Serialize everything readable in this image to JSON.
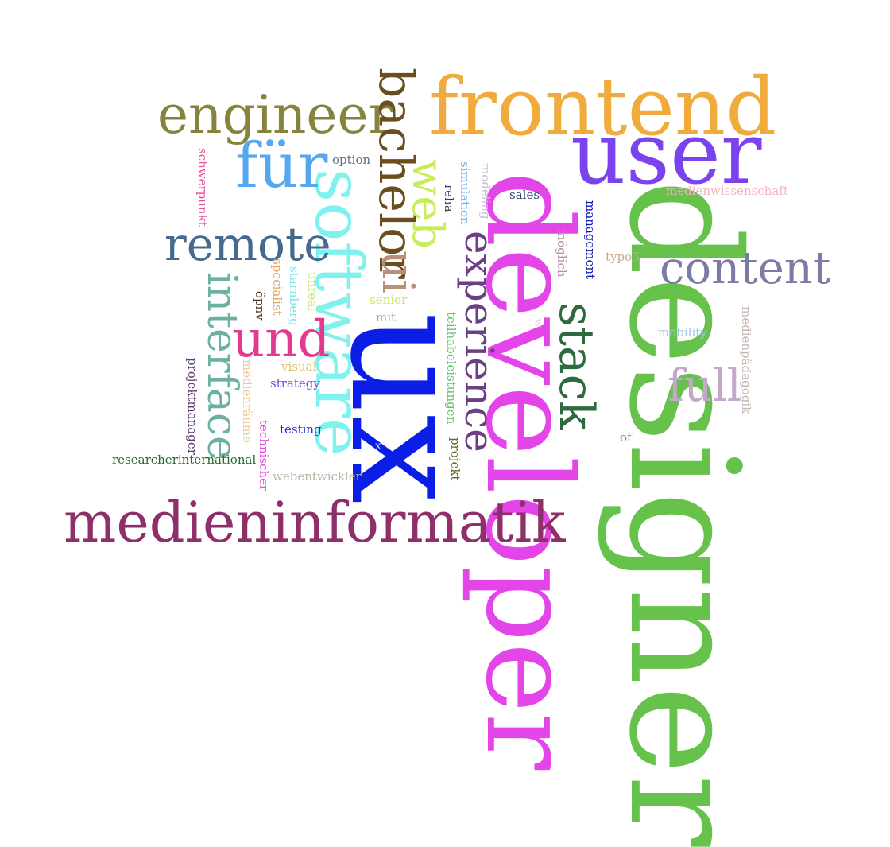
{
  "words": [
    {
      "text": "designer",
      "color": "#66c24a"
    },
    {
      "text": "developer",
      "color": "#e445e8"
    },
    {
      "text": "ux",
      "color": "#0a1ee6"
    },
    {
      "text": "user",
      "color": "#7b43ee"
    },
    {
      "text": "frontend",
      "color": "#f0ab3c"
    },
    {
      "text": "software",
      "color": "#7ff2f0"
    },
    {
      "text": "medieninformatik",
      "color": "#8e2f6a"
    },
    {
      "text": "engineer",
      "color": "#86843c"
    },
    {
      "text": "bachelor",
      "color": "#6b4e1f"
    },
    {
      "text": "für",
      "color": "#55a7ef"
    },
    {
      "text": "remote",
      "color": "#456a8e"
    },
    {
      "text": "interface",
      "color": "#6bb0a0"
    },
    {
      "text": "content",
      "color": "#7b7ba5"
    },
    {
      "text": "stack",
      "color": "#2e6a3e"
    },
    {
      "text": "experience",
      "color": "#6a3f86"
    },
    {
      "text": "und",
      "color": "#e33a90"
    },
    {
      "text": "web",
      "color": "#c6ed5a"
    },
    {
      "text": "ui",
      "color": "#b88f7a"
    },
    {
      "text": "full",
      "color": "#c3a8cc"
    },
    {
      "text": "schwerpunkt",
      "color": "#e6509c"
    },
    {
      "text": "option",
      "color": "#5c6f8a"
    },
    {
      "text": "reha",
      "color": "#3f3f65"
    },
    {
      "text": "simulation",
      "color": "#6fb5e5"
    },
    {
      "text": "modeling",
      "color": "#c4c0d4"
    },
    {
      "text": "sales",
      "color": "#2e3e70"
    },
    {
      "text": "management",
      "color": "#0f1ab8"
    },
    {
      "text": "möglich",
      "color": "#b88ca2"
    },
    {
      "text": "typo3",
      "color": "#cba992"
    },
    {
      "text": "medienwissenschaft",
      "color": "#f2b5c3"
    },
    {
      "text": "mobility",
      "color": "#a3c5e6"
    },
    {
      "text": "medienpädagogik",
      "color": "#c9b5b2"
    },
    {
      "text": "of",
      "color": "#3f9aa8"
    },
    {
      "text": "specialist",
      "color": "#e8a25c"
    },
    {
      "text": "starnberg",
      "color": "#7ee3ec"
    },
    {
      "text": "unreal",
      "color": "#c0e877"
    },
    {
      "text": "öpnv",
      "color": "#4f3a1a"
    },
    {
      "text": "senior",
      "color": "#c9e66a"
    },
    {
      "text": "mit",
      "color": "#a8a8a8"
    },
    {
      "text": "w",
      "color": "#f0c8d8"
    },
    {
      "text": "visual",
      "color": "#e0c070"
    },
    {
      "text": "strategy",
      "color": "#7a45e6"
    },
    {
      "text": "projektmanager",
      "color": "#5c3a70"
    },
    {
      "text": "medienräume",
      "color": "#f0c89c"
    },
    {
      "text": "technischer",
      "color": "#e050e0"
    },
    {
      "text": "testing",
      "color": "#1a2ad8"
    },
    {
      "text": "researcherinternational",
      "color": "#2a6a2a"
    },
    {
      "text": "webentwickler",
      "color": "#b8b8a8"
    },
    {
      "text": "x",
      "color": "#b8d8f0"
    },
    {
      "text": "teilhabeleistungen",
      "color": "#6ac06a"
    },
    {
      "text": "projekt",
      "color": "#6a6a28"
    }
  ]
}
